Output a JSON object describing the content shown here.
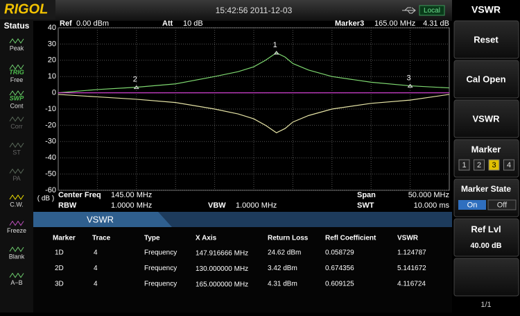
{
  "header": {
    "logo": "RIGOL",
    "time": "15:42:56 2011-12-03",
    "mode": "Local"
  },
  "status": {
    "title": "Status",
    "items": [
      [
        "Peak"
      ],
      [
        "TRIG",
        "Free"
      ],
      [
        "SWP",
        "Cont"
      ],
      [
        "Corr"
      ],
      [
        "ST"
      ],
      [
        "PA"
      ],
      [
        "C.W."
      ],
      [
        "Freeze"
      ],
      [
        "Blank"
      ],
      [
        "A−B"
      ]
    ]
  },
  "plot": {
    "top": [
      [
        "Ref",
        "0.00 dBm"
      ],
      [
        "Att",
        "10 dB"
      ],
      [
        "Marker3",
        "165.00 MHz",
        "4.31 dB"
      ]
    ],
    "bottom": [
      [
        "Center Freq",
        "145.00 MHz"
      ],
      [
        "Span",
        "50.000 MHz"
      ],
      [
        "RBW",
        "1.0000 MHz"
      ],
      [
        "VBW",
        "1.0000 MHz"
      ],
      [
        "SWT",
        "10.000 ms"
      ]
    ],
    "unit": "( dB )",
    "xlim": [
      120,
      170
    ],
    "ylim": [
      -60,
      40
    ],
    "yticks": [
      40,
      30,
      20,
      10,
      0,
      -10,
      -20,
      -30,
      -40,
      -50,
      -60
    ],
    "x": [
      120,
      125,
      130,
      135,
      140,
      143,
      145,
      146.5,
      147.9,
      149,
      150,
      152,
      155,
      160,
      165,
      170
    ],
    "traces": [
      {
        "color": "#7ed870",
        "values": [
          0,
          2,
          3.4,
          5.5,
          10,
          13,
          16,
          20,
          24.6,
          22,
          18,
          14,
          10,
          6.5,
          4.3,
          3
        ]
      },
      {
        "color": "#e6e4a6",
        "values": [
          -1,
          -2.5,
          -4,
          -6,
          -10,
          -13,
          -16,
          -20,
          -24.6,
          -22,
          -18,
          -14,
          -10,
          -6.5,
          -4.5,
          -1
        ]
      },
      {
        "color": "#d040d0",
        "values": [
          0,
          0,
          0,
          0,
          0,
          0,
          0,
          0,
          0,
          0,
          0,
          0,
          0,
          0,
          0,
          0
        ]
      }
    ],
    "markers": [
      {
        "label": "1",
        "x": 147.9,
        "y": 24.62
      },
      {
        "label": "2",
        "x": 130,
        "y": 3.42
      },
      {
        "label": "3",
        "x": 165,
        "y": 4.31
      }
    ]
  },
  "table": {
    "title": "VSWR",
    "columns": [
      "Marker",
      "Trace",
      "Type",
      "X Axis",
      "Return Loss",
      "Refl Coefficient",
      "VSWR"
    ],
    "rows": [
      [
        "1D",
        "4",
        "Frequency",
        "147.916666 MHz",
        "24.62 dBm",
        "0.058729",
        "1.124787"
      ],
      [
        "2D",
        "4",
        "Frequency",
        "130.000000 MHz",
        "3.42 dBm",
        "0.674356",
        "5.141672"
      ],
      [
        "3D",
        "4",
        "Frequency",
        "165.000000 MHz",
        "4.31 dBm",
        "0.609125",
        "4.116724"
      ]
    ]
  },
  "softkeys": {
    "title": "VSWR",
    "reset": "Reset",
    "cal_open": "Cal Open",
    "vswr": "VSWR",
    "marker": {
      "label": "Marker",
      "options": [
        "1",
        "2",
        "3",
        "4"
      ]
    },
    "marker_state": {
      "label": "Marker State",
      "on": "On",
      "off": "Off"
    },
    "ref_lvl": {
      "label": "Ref Lvl",
      "value": "40.00 dB"
    },
    "page": "1/1"
  }
}
